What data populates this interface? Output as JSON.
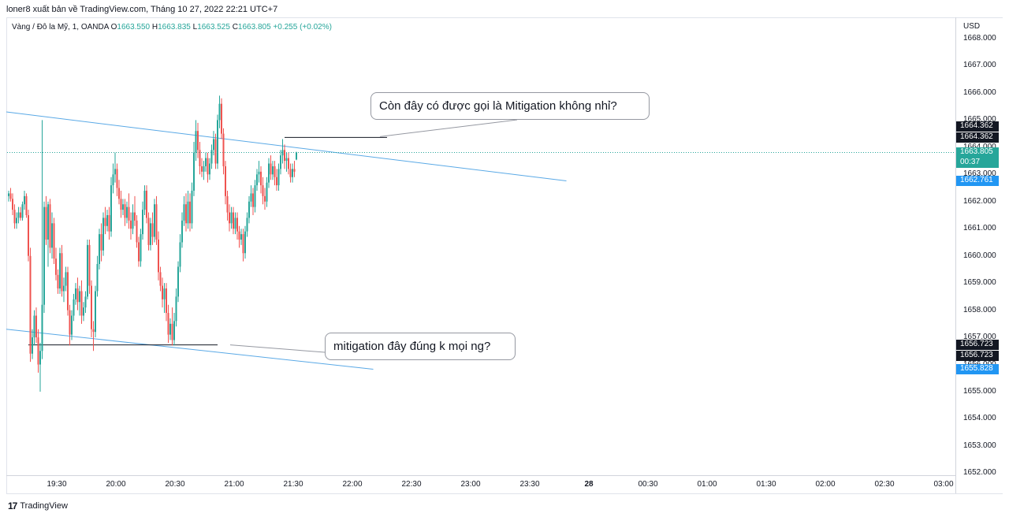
{
  "header": {
    "publish_line": "loner8 xuất bản về TradingView.com, Tháng 10 27, 2022 22:21 UTC+7"
  },
  "legend": {
    "symbol": "Vàng / Đô la Mỹ, 1, OANDA",
    "open_label": "O",
    "open": "1663.550",
    "high_label": "H",
    "high": "1663.835",
    "low_label": "L",
    "low": "1663.525",
    "close_label": "C",
    "close": "1663.805",
    "change": "+0.255 (+0.02%)"
  },
  "price_axis": {
    "currency": "USD",
    "ticks": [
      "1668.000",
      "1667.000",
      "1666.000",
      "1665.000",
      "1664.000",
      "1663.000",
      "1662.000",
      "1661.000",
      "1660.000",
      "1659.000",
      "1658.000",
      "1657.000",
      "1656.000",
      "1655.000",
      "1654.000",
      "1653.000",
      "1652.000"
    ]
  },
  "time_axis": {
    "ticks": [
      "19:30",
      "20:00",
      "20:30",
      "21:00",
      "21:30",
      "22:00",
      "22:30",
      "23:00",
      "23:30",
      "28",
      "00:30",
      "01:00",
      "01:30",
      "02:00",
      "02:30",
      "03:00"
    ]
  },
  "price_labels": [
    {
      "name": "upper-level-a",
      "text": "1664.362",
      "color": "#131722"
    },
    {
      "name": "upper-level-b",
      "text": "1664.362",
      "color": "#131722"
    },
    {
      "name": "current-price",
      "text": "1663.805",
      "color": "#26a69a"
    },
    {
      "name": "countdown",
      "text": "00:37",
      "color": "#26a69a"
    },
    {
      "name": "upper-trendline",
      "text": "1662.761",
      "color": "#2196f3"
    },
    {
      "name": "lower-level-a",
      "text": "1656.723",
      "color": "#131722"
    },
    {
      "name": "lower-level-b",
      "text": "1656.723",
      "color": "#131722"
    },
    {
      "name": "lower-trendline",
      "text": "1655.828",
      "color": "#2196f3"
    }
  ],
  "callouts": {
    "upper": "Còn đây có được gọi là Mitigation không nhỉ?",
    "lower": "mitigation đây đúng k mọi ng?"
  },
  "footer": {
    "brand": "TradingView",
    "logo": "17"
  },
  "colors": {
    "up": "#26a69a",
    "down": "#ef5350",
    "trendline": "#5aa9e6",
    "level_line": "#131722"
  },
  "chart_data": {
    "type": "candlestick",
    "title": "",
    "symbol": "Vàng / Đô la Mỹ, 1, OANDA",
    "timeframe_minutes": 1,
    "ylim": [
      1652.0,
      1668.5
    ],
    "x_range": [
      "19:11",
      "03:11"
    ],
    "candle_start_time": "19:11",
    "last_candle_time": "22:22",
    "grid": false,
    "candles": [
      [
        1662.2,
        1662.4,
        1662.0,
        1662.3
      ],
      [
        1662.3,
        1662.5,
        1662.0,
        1662.1
      ],
      [
        1662.1,
        1662.3,
        1661.5,
        1661.7
      ],
      [
        1661.7,
        1661.9,
        1661.0,
        1661.2
      ],
      [
        1661.2,
        1661.6,
        1661.0,
        1661.4
      ],
      [
        1661.4,
        1661.8,
        1661.2,
        1661.6
      ],
      [
        1661.6,
        1661.8,
        1661.3,
        1661.4
      ],
      [
        1661.4,
        1662.0,
        1661.3,
        1661.9
      ],
      [
        1661.9,
        1662.4,
        1661.7,
        1662.2
      ],
      [
        1662.2,
        1662.3,
        1661.4,
        1661.5
      ],
      [
        1661.5,
        1661.7,
        1659.8,
        1660.0
      ],
      [
        1660.0,
        1660.3,
        1656.1,
        1656.4
      ],
      [
        1656.4,
        1657.3,
        1656.2,
        1657.0
      ],
      [
        1657.0,
        1658.0,
        1656.7,
        1657.8
      ],
      [
        1657.8,
        1658.1,
        1656.8,
        1657.0
      ],
      [
        1657.0,
        1657.3,
        1655.7,
        1656.0
      ],
      [
        1656.0,
        1656.8,
        1655.0,
        1656.5
      ],
      [
        1656.5,
        1665.0,
        1656.2,
        1658.2
      ],
      [
        1658.2,
        1662.0,
        1657.9,
        1661.8
      ],
      [
        1661.8,
        1662.2,
        1660.4,
        1660.6
      ],
      [
        1660.6,
        1662.0,
        1659.6,
        1661.9
      ],
      [
        1661.9,
        1662.1,
        1660.1,
        1660.3
      ],
      [
        1660.3,
        1661.6,
        1659.9,
        1661.2
      ],
      [
        1661.2,
        1661.4,
        1659.7,
        1659.9
      ],
      [
        1659.9,
        1660.3,
        1659.1,
        1659.3
      ],
      [
        1659.3,
        1659.5,
        1658.6,
        1658.8
      ],
      [
        1658.8,
        1660.3,
        1658.6,
        1660.1
      ],
      [
        1660.1,
        1660.4,
        1658.5,
        1658.7
      ],
      [
        1658.7,
        1659.2,
        1658.3,
        1658.9
      ],
      [
        1658.9,
        1659.6,
        1658.7,
        1659.4
      ],
      [
        1659.4,
        1659.6,
        1657.8,
        1658.0
      ],
      [
        1658.0,
        1658.2,
        1656.7,
        1657.1
      ],
      [
        1657.1,
        1658.0,
        1656.9,
        1657.8
      ],
      [
        1657.8,
        1658.6,
        1657.6,
        1658.4
      ],
      [
        1658.4,
        1659.0,
        1658.2,
        1658.8
      ],
      [
        1658.8,
        1659.2,
        1658.0,
        1658.3
      ],
      [
        1658.3,
        1658.9,
        1657.8,
        1658.7
      ],
      [
        1658.7,
        1659.1,
        1657.5,
        1657.8
      ],
      [
        1657.8,
        1658.3,
        1657.6,
        1658.1
      ],
      [
        1658.1,
        1658.7,
        1657.9,
        1658.5
      ],
      [
        1658.5,
        1660.6,
        1658.4,
        1660.4
      ],
      [
        1660.4,
        1660.6,
        1658.6,
        1658.9
      ],
      [
        1658.9,
        1659.1,
        1657.0,
        1657.3
      ],
      [
        1657.3,
        1657.6,
        1656.5,
        1657.2
      ],
      [
        1657.2,
        1658.9,
        1657.0,
        1658.7
      ],
      [
        1658.7,
        1660.0,
        1658.5,
        1659.7
      ],
      [
        1659.7,
        1661.0,
        1659.5,
        1660.8
      ],
      [
        1660.8,
        1661.2,
        1659.8,
        1660.2
      ],
      [
        1660.2,
        1661.6,
        1660.0,
        1661.4
      ],
      [
        1661.4,
        1661.8,
        1660.8,
        1661.1
      ],
      [
        1661.1,
        1661.7,
        1660.9,
        1661.5
      ],
      [
        1661.5,
        1661.8,
        1660.6,
        1660.9
      ],
      [
        1660.9,
        1662.9,
        1660.7,
        1662.6
      ],
      [
        1662.6,
        1663.4,
        1662.3,
        1663.0
      ],
      [
        1663.0,
        1663.8,
        1662.7,
        1663.2
      ],
      [
        1663.2,
        1663.4,
        1662.2,
        1662.5
      ],
      [
        1662.5,
        1662.8,
        1661.9,
        1662.1
      ],
      [
        1662.1,
        1662.4,
        1661.4,
        1661.7
      ],
      [
        1661.7,
        1662.1,
        1661.5,
        1661.9
      ],
      [
        1661.9,
        1662.1,
        1661.1,
        1661.4
      ],
      [
        1661.4,
        1662.0,
        1661.2,
        1661.8
      ],
      [
        1661.8,
        1662.3,
        1661.0,
        1661.3
      ],
      [
        1661.3,
        1661.6,
        1660.6,
        1661.0
      ],
      [
        1661.0,
        1661.9,
        1660.8,
        1661.6
      ],
      [
        1661.6,
        1662.2,
        1661.1,
        1661.3
      ],
      [
        1661.3,
        1661.5,
        1660.3,
        1660.5
      ],
      [
        1660.5,
        1660.7,
        1659.6,
        1659.8
      ],
      [
        1659.8,
        1661.0,
        1659.6,
        1660.8
      ],
      [
        1660.8,
        1662.0,
        1660.6,
        1661.7
      ],
      [
        1661.7,
        1662.6,
        1661.5,
        1662.4
      ],
      [
        1662.4,
        1662.6,
        1661.2,
        1661.4
      ],
      [
        1661.4,
        1661.6,
        1660.2,
        1660.4
      ],
      [
        1660.4,
        1661.4,
        1660.2,
        1661.2
      ],
      [
        1661.2,
        1661.6,
        1660.4,
        1660.7
      ],
      [
        1660.7,
        1662.1,
        1660.5,
        1661.9
      ],
      [
        1661.9,
        1662.2,
        1660.4,
        1660.6
      ],
      [
        1660.6,
        1660.9,
        1659.1,
        1659.4
      ],
      [
        1659.4,
        1659.6,
        1658.7,
        1658.9
      ],
      [
        1658.9,
        1659.2,
        1658.1,
        1658.4
      ],
      [
        1658.4,
        1659.0,
        1657.9,
        1658.8
      ],
      [
        1658.8,
        1659.0,
        1657.6,
        1657.9
      ],
      [
        1657.9,
        1658.2,
        1656.8,
        1657.1
      ],
      [
        1657.1,
        1657.7,
        1656.9,
        1657.5
      ],
      [
        1657.5,
        1658.1,
        1656.7,
        1656.9
      ],
      [
        1656.9,
        1657.9,
        1656.7,
        1657.6
      ],
      [
        1657.6,
        1658.8,
        1657.4,
        1658.5
      ],
      [
        1658.5,
        1659.8,
        1658.3,
        1659.6
      ],
      [
        1659.6,
        1660.8,
        1659.4,
        1660.5
      ],
      [
        1660.5,
        1661.6,
        1660.3,
        1661.3
      ],
      [
        1661.3,
        1662.2,
        1661.1,
        1661.9
      ],
      [
        1661.9,
        1662.3,
        1660.9,
        1661.2
      ],
      [
        1661.2,
        1662.4,
        1661.0,
        1662.0
      ],
      [
        1662.0,
        1662.3,
        1660.9,
        1661.2
      ],
      [
        1661.2,
        1662.7,
        1661.0,
        1662.4
      ],
      [
        1662.4,
        1664.2,
        1662.2,
        1663.8
      ],
      [
        1663.8,
        1665.0,
        1663.5,
        1664.6
      ],
      [
        1664.6,
        1664.9,
        1663.6,
        1663.9
      ],
      [
        1663.9,
        1664.2,
        1663.0,
        1663.3
      ],
      [
        1663.3,
        1663.6,
        1662.9,
        1663.1
      ],
      [
        1663.1,
        1663.5,
        1662.8,
        1663.3
      ],
      [
        1663.3,
        1663.8,
        1663.1,
        1663.6
      ],
      [
        1663.6,
        1663.8,
        1662.7,
        1663.0
      ],
      [
        1663.0,
        1663.6,
        1662.8,
        1663.4
      ],
      [
        1663.4,
        1664.1,
        1663.2,
        1663.9
      ],
      [
        1663.9,
        1664.6,
        1663.7,
        1664.3
      ],
      [
        1664.3,
        1664.5,
        1663.2,
        1663.4
      ],
      [
        1663.4,
        1665.2,
        1663.2,
        1665.0
      ],
      [
        1665.0,
        1665.9,
        1664.7,
        1665.6
      ],
      [
        1665.6,
        1665.8,
        1664.3,
        1664.5
      ],
      [
        1664.5,
        1664.7,
        1663.0,
        1663.3
      ],
      [
        1663.3,
        1663.5,
        1661.9,
        1662.2
      ],
      [
        1662.2,
        1662.4,
        1661.3,
        1661.6
      ],
      [
        1661.6,
        1661.9,
        1660.9,
        1661.2
      ],
      [
        1661.2,
        1661.8,
        1661.0,
        1661.6
      ],
      [
        1661.6,
        1661.8,
        1660.8,
        1661.0
      ],
      [
        1661.0,
        1661.6,
        1660.8,
        1661.4
      ],
      [
        1661.4,
        1661.6,
        1660.6,
        1660.9
      ],
      [
        1660.9,
        1661.1,
        1660.3,
        1660.6
      ],
      [
        1660.6,
        1661.0,
        1660.4,
        1660.8
      ],
      [
        1660.8,
        1661.0,
        1659.8,
        1660.1
      ],
      [
        1660.1,
        1661.1,
        1659.9,
        1660.9
      ],
      [
        1660.9,
        1661.6,
        1660.7,
        1661.4
      ],
      [
        1661.4,
        1662.2,
        1661.2,
        1662.0
      ],
      [
        1662.0,
        1662.6,
        1661.8,
        1662.3
      ],
      [
        1662.3,
        1662.5,
        1661.5,
        1661.8
      ],
      [
        1661.8,
        1662.8,
        1661.6,
        1662.6
      ],
      [
        1662.6,
        1663.2,
        1662.4,
        1663.0
      ],
      [
        1663.0,
        1663.5,
        1662.7,
        1663.1
      ],
      [
        1663.1,
        1663.3,
        1662.3,
        1662.6
      ],
      [
        1662.6,
        1662.9,
        1661.9,
        1662.2
      ],
      [
        1662.2,
        1662.5,
        1661.7,
        1662.0
      ],
      [
        1662.0,
        1662.9,
        1661.8,
        1662.7
      ],
      [
        1662.7,
        1663.6,
        1662.5,
        1663.4
      ],
      [
        1663.4,
        1663.7,
        1662.8,
        1663.0
      ],
      [
        1663.0,
        1663.5,
        1662.8,
        1663.3
      ],
      [
        1663.3,
        1663.5,
        1662.6,
        1662.9
      ],
      [
        1662.9,
        1663.2,
        1662.4,
        1662.6
      ],
      [
        1662.6,
        1663.4,
        1662.4,
        1663.2
      ],
      [
        1663.2,
        1663.9,
        1663.0,
        1663.7
      ],
      [
        1663.7,
        1664.3,
        1663.4,
        1663.9
      ],
      [
        1663.9,
        1664.1,
        1663.2,
        1663.5
      ],
      [
        1663.5,
        1663.8,
        1663.1,
        1663.6
      ],
      [
        1663.6,
        1663.8,
        1663.0,
        1663.2
      ],
      [
        1663.2,
        1663.4,
        1662.7,
        1662.9
      ],
      [
        1662.9,
        1663.4,
        1662.7,
        1663.2
      ],
      [
        1663.2,
        1663.5,
        1662.9,
        1663.1
      ],
      [
        1663.55,
        1663.835,
        1663.525,
        1663.805
      ]
    ],
    "trendlines": [
      {
        "name": "upper-trendline",
        "points": [
          [
            "19:11",
            1665.3
          ],
          [
            "22:52",
            1663.85
          ],
          [
            "23:54",
            1662.761
          ]
        ]
      },
      {
        "name": "lower-trendline",
        "points": [
          [
            "19:11",
            1657.3
          ],
          [
            "22:16",
            1655.828
          ]
        ]
      }
    ],
    "levels": [
      {
        "name": "upper-level",
        "y": 1664.362,
        "from": "21:31",
        "to": "22:23"
      },
      {
        "name": "lower-level",
        "y": 1656.723,
        "from": "19:21",
        "to": "20:57"
      }
    ],
    "current_price": 1663.805
  }
}
